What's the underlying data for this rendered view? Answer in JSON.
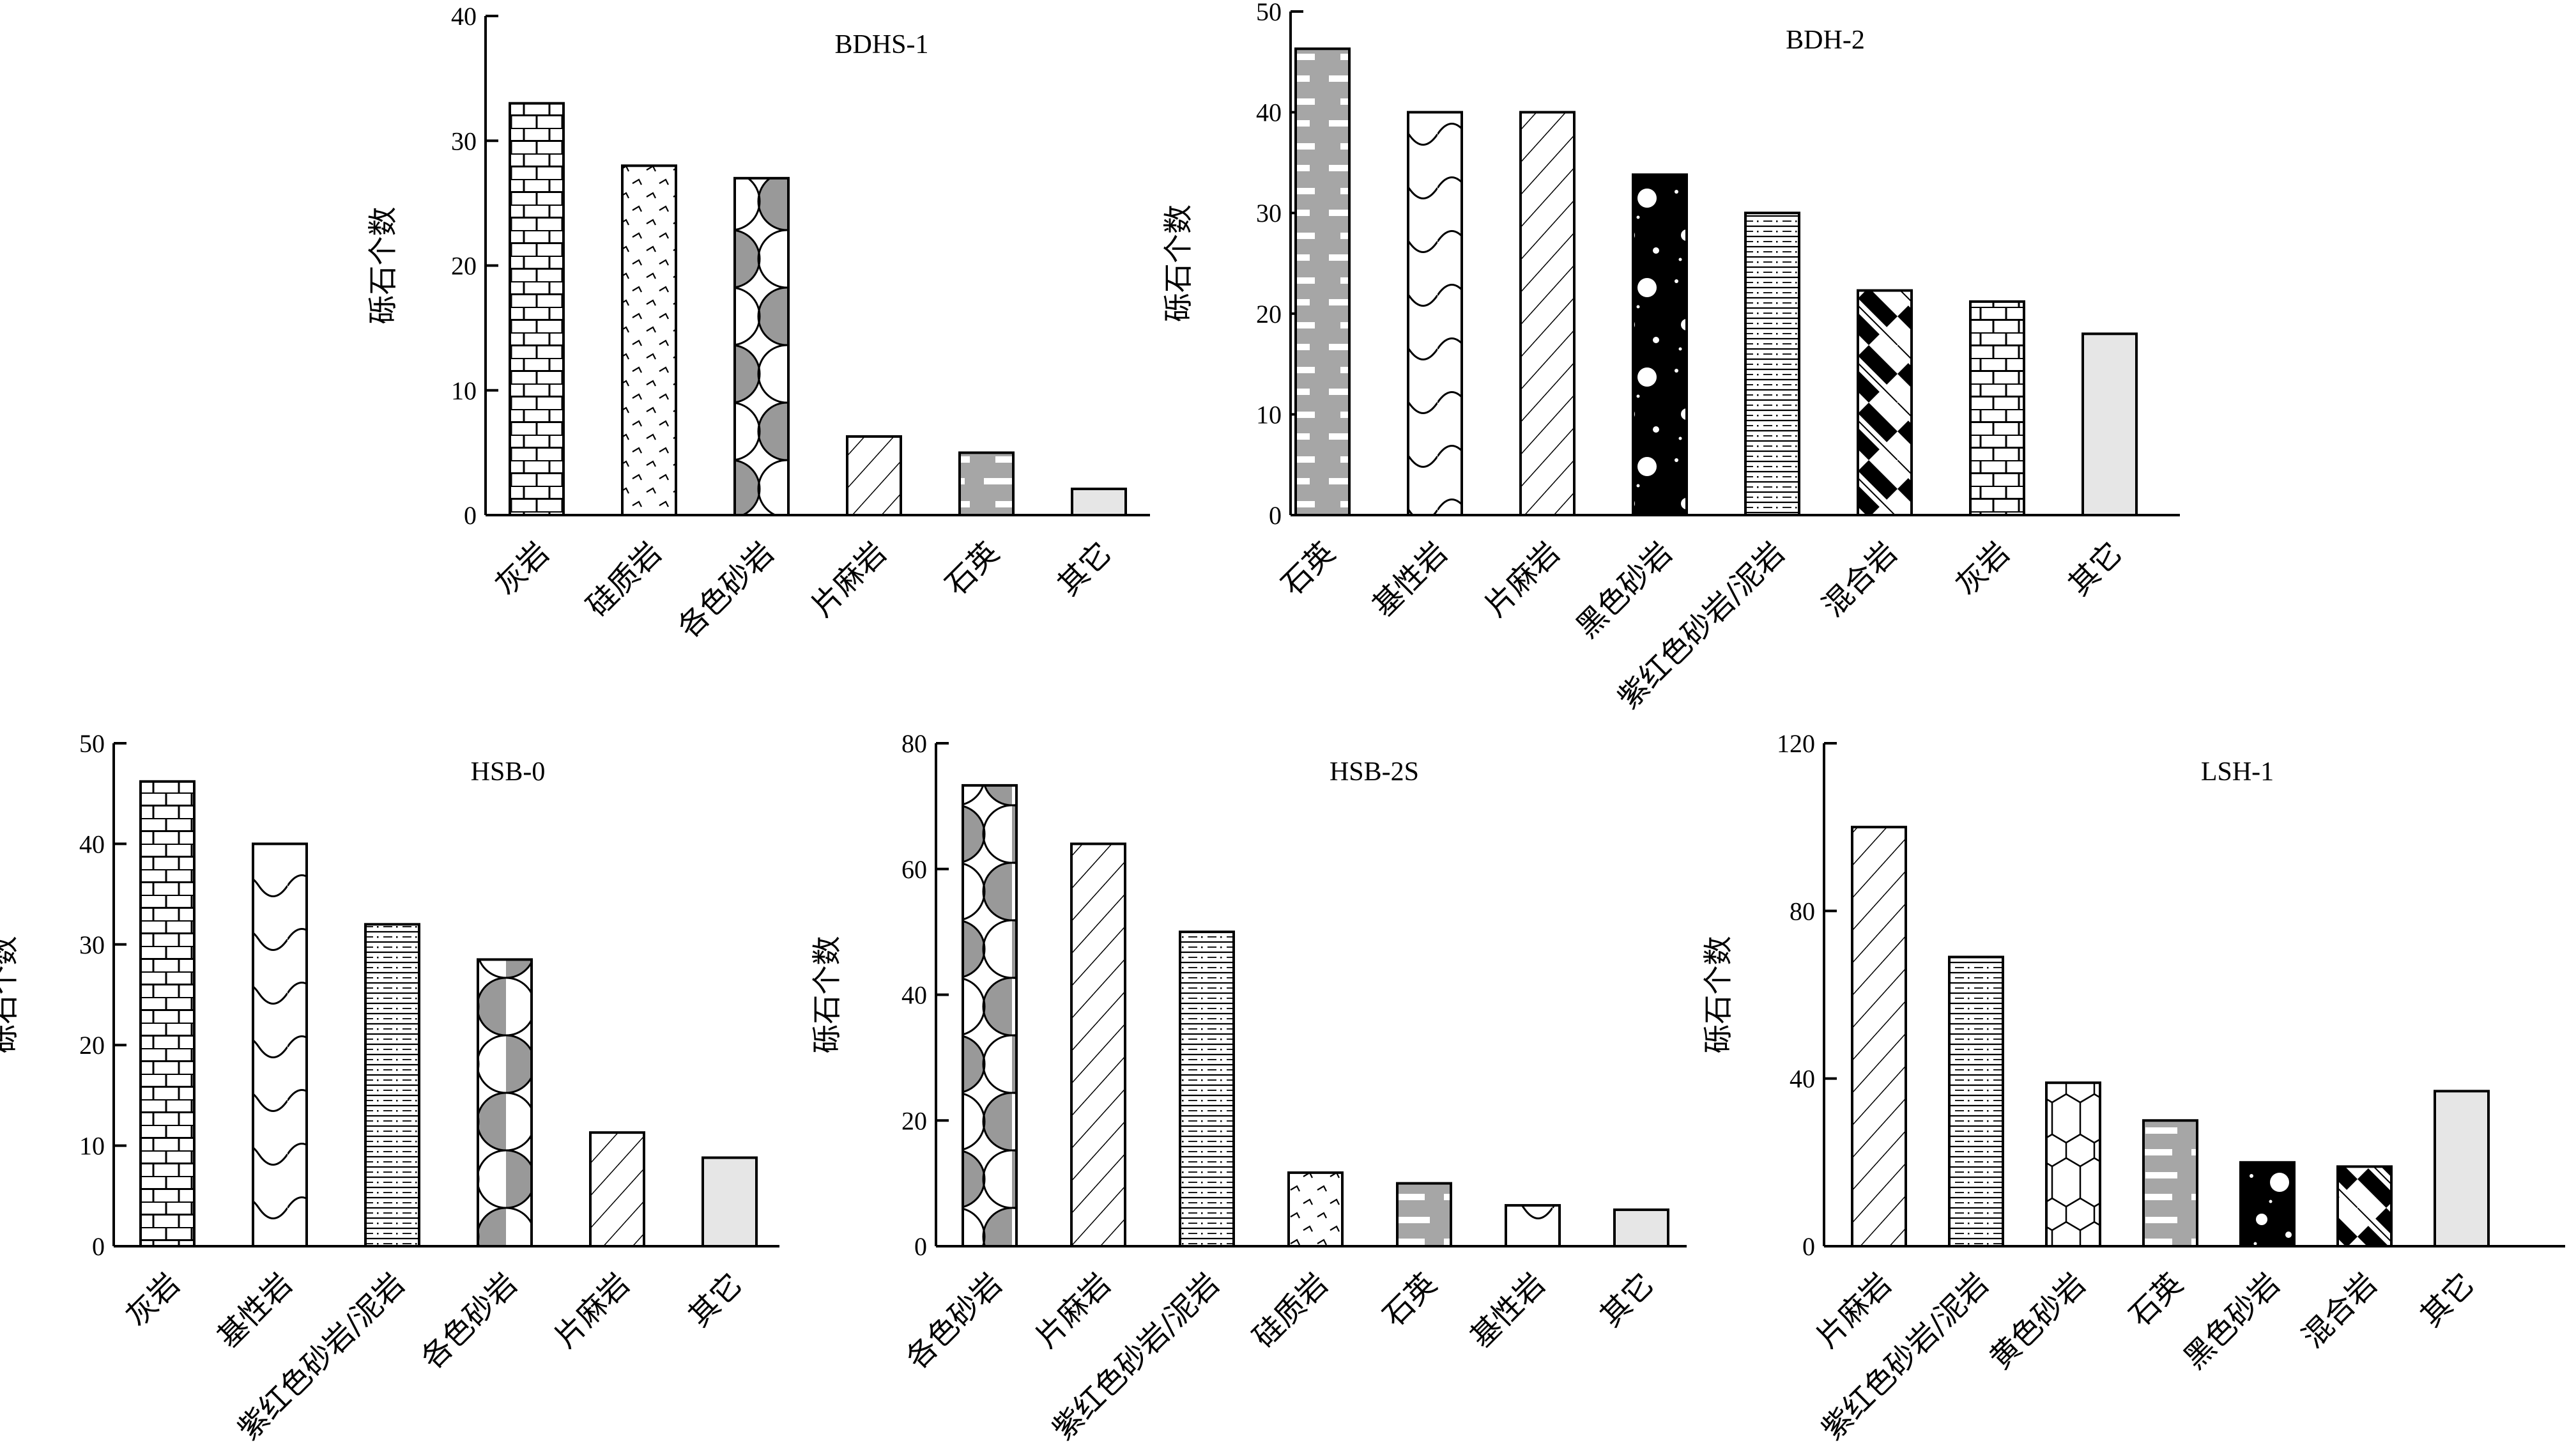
{
  "ylabel": "砾石个数",
  "chart_data": [
    {
      "type": "bar",
      "title": "BDHS-1",
      "ylabel": "砾石个数",
      "ylim": [
        0,
        40
      ],
      "yticks": [
        0,
        10,
        20,
        30,
        40
      ],
      "categories": [
        "灰岩",
        "硅质岩",
        "各色砂岩",
        "片麻岩",
        "石英",
        "其它"
      ],
      "values": [
        33,
        28,
        27,
        6.3,
        5,
        2.1
      ],
      "patterns": [
        "brick",
        "chevron",
        "scallop",
        "hatch",
        "quartz",
        "plain"
      ]
    },
    {
      "type": "bar",
      "title": "BDH-2",
      "ylabel": "砾石个数",
      "ylim": [
        0,
        50
      ],
      "yticks": [
        0,
        10,
        20,
        30,
        40,
        50
      ],
      "categories": [
        "石英",
        "基性岩",
        "片麻岩",
        "黑色砂岩",
        "紫红色砂岩/泥岩",
        "混合岩",
        "灰岩",
        "其它"
      ],
      "values": [
        46.3,
        40,
        40,
        33.8,
        30,
        22.3,
        21.2,
        18
      ],
      "patterns": [
        "quartz",
        "wave",
        "hatch",
        "dots",
        "dashline",
        "weave",
        "brick",
        "plain"
      ]
    },
    {
      "type": "bar",
      "title": "HSB-0",
      "ylabel": "砾石个数",
      "ylim": [
        0,
        50
      ],
      "yticks": [
        0,
        10,
        20,
        30,
        40,
        50
      ],
      "categories": [
        "灰岩",
        "基性岩",
        "紫红色砂岩/泥岩",
        "各色砂岩",
        "片麻岩",
        "其它"
      ],
      "values": [
        46.2,
        40,
        32,
        28.5,
        11.3,
        8.8
      ],
      "patterns": [
        "brick",
        "wave",
        "dashline",
        "scallop",
        "hatch",
        "plain"
      ]
    },
    {
      "type": "bar",
      "title": "HSB-2S",
      "ylabel": "砾石个数",
      "ylim": [
        0,
        80
      ],
      "yticks": [
        0,
        20,
        40,
        60,
        80
      ],
      "categories": [
        "各色砂岩",
        "片麻岩",
        "紫红色砂岩/泥岩",
        "硅质岩",
        "石英",
        "基性岩",
        "其它"
      ],
      "values": [
        73.3,
        64,
        50,
        11.7,
        10,
        6.5,
        5.8
      ],
      "patterns": [
        "scallop",
        "hatch",
        "dashline",
        "chevron",
        "quartz",
        "wave",
        "plain"
      ]
    },
    {
      "type": "bar",
      "title": "LSH-1",
      "ylabel": "砾石个数",
      "ylim": [
        0,
        120
      ],
      "yticks": [
        0,
        40,
        80,
        120
      ],
      "categories": [
        "片麻岩",
        "紫红色砂岩/泥岩",
        "黄色砂岩",
        "石英",
        "黑色砂岩",
        "混合岩",
        "其它"
      ],
      "values": [
        100,
        69,
        39,
        30,
        20,
        19,
        37
      ],
      "patterns": [
        "hatch",
        "dashline",
        "hexagon",
        "quartz",
        "dots",
        "weave",
        "plain"
      ]
    }
  ]
}
